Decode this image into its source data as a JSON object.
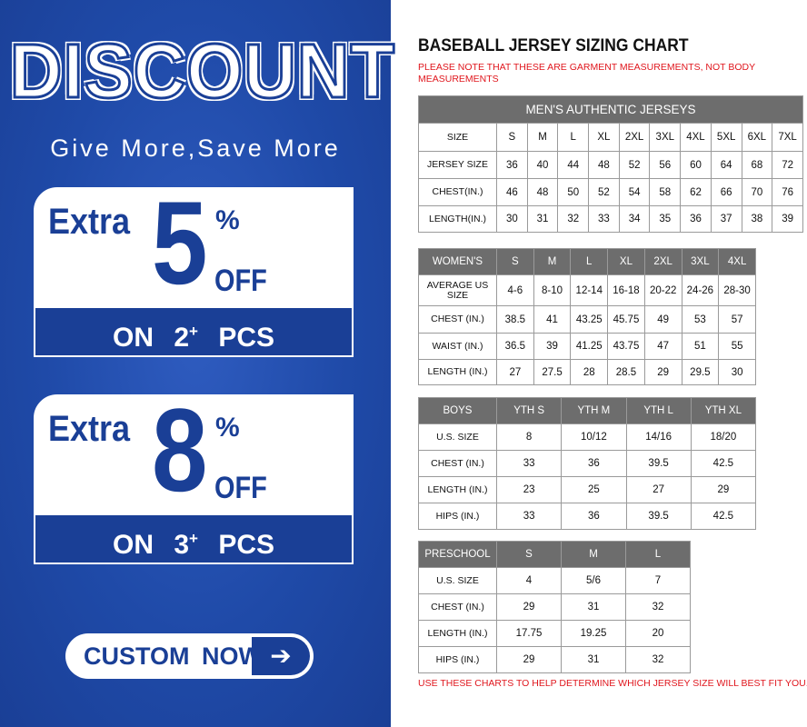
{
  "promo": {
    "headline": "DISCOUNT",
    "tagline": "Give More,Save More",
    "offers": [
      {
        "extra": "Extra",
        "value": "5",
        "percent": "%",
        "off": "OFF",
        "on": "ON",
        "qty": "2",
        "plus": "+",
        "pcs": "PCS"
      },
      {
        "extra": "Extra",
        "value": "8",
        "percent": "%",
        "off": "OFF",
        "on": "ON",
        "qty": "3",
        "plus": "+",
        "pcs": "PCS"
      }
    ],
    "cta_label": "CUSTOM NOW",
    "cta_icon": "arrow-right-icon",
    "colors": {
      "brand_blue": "#1f4aa8",
      "header_gray": "#6d6d6d",
      "note_red": "#e0161d"
    }
  },
  "chart": {
    "title": "BASEBALL JERSEY SIZING CHART",
    "note": "PLEASE NOTE THAT THESE ARE GARMENT MEASUREMENTS, NOT BODY MEASUREMENTS",
    "footer": "USE THESE CHARTS TO HELP DETERMINE WHICH JERSEY SIZE WILL BEST FIT YOU.",
    "mens": {
      "title": "MEN'S AUTHENTIC JERSEYS",
      "rows": [
        [
          "SIZE",
          "S",
          "M",
          "L",
          "XL",
          "2XL",
          "3XL",
          "4XL",
          "5XL",
          "6XL",
          "7XL"
        ],
        [
          "JERSEY SIZE",
          "36",
          "40",
          "44",
          "48",
          "52",
          "56",
          "60",
          "64",
          "68",
          "72"
        ],
        [
          "CHEST(IN.)",
          "46",
          "48",
          "50",
          "52",
          "54",
          "58",
          "62",
          "66",
          "70",
          "76"
        ],
        [
          "LENGTH(IN.)",
          "30",
          "31",
          "32",
          "33",
          "34",
          "35",
          "36",
          "37",
          "38",
          "39"
        ]
      ]
    },
    "womens": {
      "header": [
        "WOMEN'S",
        "S",
        "M",
        "L",
        "XL",
        "2XL",
        "3XL",
        "4XL"
      ],
      "rows": [
        [
          "AVERAGE US SIZE",
          "4-6",
          "8-10",
          "12-14",
          "16-18",
          "20-22",
          "24-26",
          "28-30"
        ],
        [
          "CHEST (IN.)",
          "38.5",
          "41",
          "43.25",
          "45.75",
          "49",
          "53",
          "57"
        ],
        [
          "WAIST (IN.)",
          "36.5",
          "39",
          "41.25",
          "43.75",
          "47",
          "51",
          "55"
        ],
        [
          "LENGTH (IN.)",
          "27",
          "27.5",
          "28",
          "28.5",
          "29",
          "29.5",
          "30"
        ]
      ]
    },
    "boys": {
      "header": [
        "BOYS",
        "YTH S",
        "YTH M",
        "YTH L",
        "YTH XL"
      ],
      "rows": [
        [
          "U.S. SIZE",
          "8",
          "10/12",
          "14/16",
          "18/20"
        ],
        [
          "CHEST (IN.)",
          "33",
          "36",
          "39.5",
          "42.5"
        ],
        [
          "LENGTH (IN.)",
          "23",
          "25",
          "27",
          "29"
        ],
        [
          "HIPS (IN.)",
          "33",
          "36",
          "39.5",
          "42.5"
        ]
      ]
    },
    "preschool": {
      "header": [
        "PRESCHOOL",
        "S",
        "M",
        "L"
      ],
      "rows": [
        [
          "U.S. SIZE",
          "4",
          "5/6",
          "7"
        ],
        [
          "CHEST (IN.)",
          "29",
          "31",
          "32"
        ],
        [
          "LENGTH (IN.)",
          "17.75",
          "19.25",
          "20"
        ],
        [
          "HIPS (IN.)",
          "29",
          "31",
          "32"
        ]
      ]
    }
  }
}
